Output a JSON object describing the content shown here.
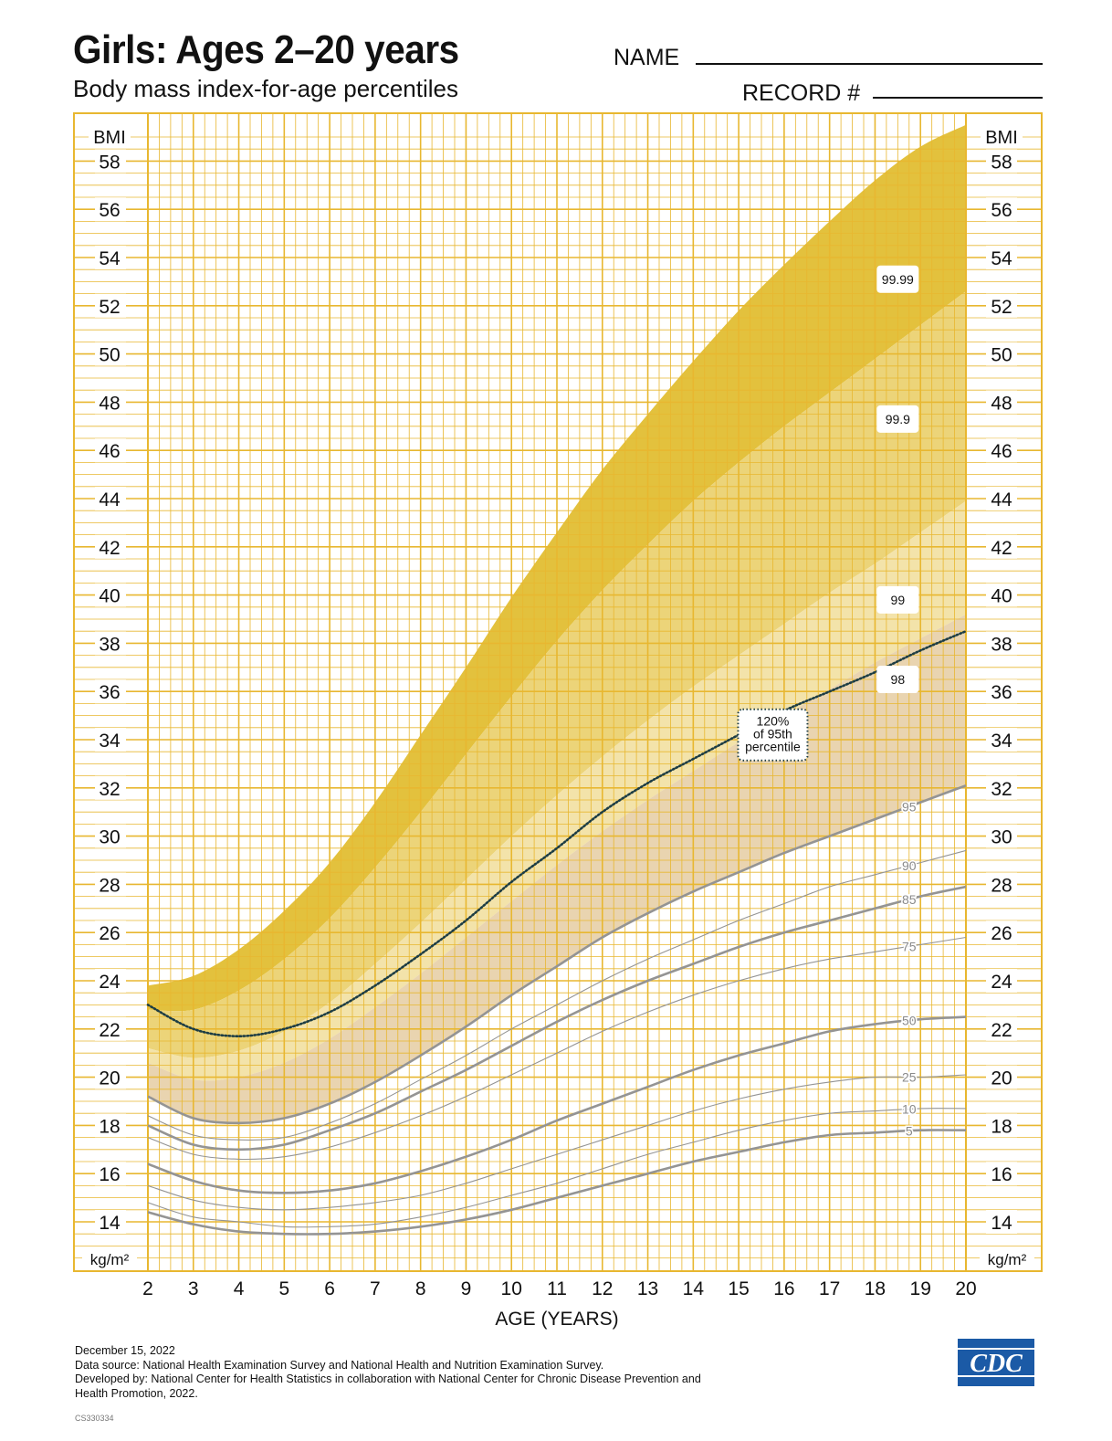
{
  "header": {
    "title": "Girls: Ages 2–20 years",
    "subtitle": "Body mass index-for-age percentiles",
    "name_label": "NAME",
    "record_label": "RECORD #"
  },
  "footer": {
    "date": "December 15, 2022",
    "source": "Data source: National Health Examination Survey and National Health and Nutrition Examination Survey.",
    "developed_1": "Developed by: National Center for Health Statistics in collaboration with National Center for Chronic Disease Prevention and",
    "developed_2": "Health Promotion, 2022.",
    "code": "CS330334"
  },
  "logo": {
    "text": "CDC",
    "color": "#1b5aa6"
  },
  "colors": {
    "grid": "#e8b730",
    "band_99_99": "#e3c13d",
    "band_99_9": "#ecd479",
    "band_99": "#f3e3aa",
    "band_98": "#e9d4b0",
    "curve": "#949494",
    "dotted": "#1d3d44"
  },
  "chart_data": {
    "type": "line",
    "xlabel": "AGE (YEARS)",
    "ylabel": "BMI",
    "yunit": "kg/m²",
    "xlim": [
      2,
      20
    ],
    "ylim": [
      12.5,
      60
    ],
    "x_ticks": [
      2,
      3,
      4,
      5,
      6,
      7,
      8,
      9,
      10,
      11,
      12,
      13,
      14,
      15,
      16,
      17,
      18,
      19,
      20
    ],
    "y_ticks": [
      14,
      16,
      18,
      20,
      22,
      24,
      26,
      28,
      30,
      32,
      34,
      36,
      38,
      40,
      42,
      44,
      46,
      48,
      50,
      52,
      54,
      56,
      58
    ],
    "x": [
      2,
      3,
      4,
      5,
      6,
      7,
      8,
      9,
      10,
      11,
      12,
      13,
      14,
      15,
      16,
      17,
      18,
      19,
      20
    ],
    "percentile_curves": [
      {
        "name": "5",
        "values": [
          14.4,
          13.9,
          13.6,
          13.5,
          13.5,
          13.6,
          13.8,
          14.1,
          14.5,
          15.0,
          15.5,
          16.0,
          16.5,
          16.9,
          17.3,
          17.6,
          17.7,
          17.8,
          17.8
        ],
        "weight": "bold"
      },
      {
        "name": "10",
        "values": [
          14.8,
          14.2,
          14.0,
          13.8,
          13.8,
          13.9,
          14.2,
          14.6,
          15.1,
          15.6,
          16.2,
          16.8,
          17.3,
          17.8,
          18.2,
          18.5,
          18.6,
          18.7,
          18.7
        ],
        "weight": "thin"
      },
      {
        "name": "25",
        "values": [
          15.5,
          14.9,
          14.6,
          14.5,
          14.6,
          14.8,
          15.1,
          15.6,
          16.2,
          16.8,
          17.4,
          18.0,
          18.6,
          19.1,
          19.5,
          19.8,
          20.0,
          20.0,
          20.1
        ],
        "weight": "thin"
      },
      {
        "name": "50",
        "values": [
          16.4,
          15.7,
          15.3,
          15.2,
          15.3,
          15.6,
          16.1,
          16.7,
          17.4,
          18.2,
          18.9,
          19.6,
          20.3,
          20.9,
          21.4,
          21.9,
          22.2,
          22.4,
          22.5
        ],
        "weight": "bold"
      },
      {
        "name": "75",
        "values": [
          17.5,
          16.8,
          16.6,
          16.7,
          17.1,
          17.7,
          18.4,
          19.2,
          20.1,
          21.0,
          21.9,
          22.7,
          23.4,
          24.0,
          24.5,
          24.9,
          25.2,
          25.5,
          25.8
        ],
        "weight": "thin"
      },
      {
        "name": "85",
        "values": [
          18.0,
          17.2,
          17.0,
          17.2,
          17.8,
          18.5,
          19.4,
          20.3,
          21.3,
          22.3,
          23.2,
          24.0,
          24.7,
          25.4,
          26.0,
          26.5,
          27.0,
          27.5,
          27.9
        ],
        "weight": "bold"
      },
      {
        "name": "90",
        "values": [
          18.4,
          17.6,
          17.4,
          17.5,
          18.1,
          18.9,
          19.9,
          20.9,
          22.0,
          23.0,
          24.0,
          24.9,
          25.7,
          26.5,
          27.2,
          27.9,
          28.4,
          28.9,
          29.4
        ],
        "weight": "thin"
      },
      {
        "name": "95",
        "values": [
          19.2,
          18.3,
          18.1,
          18.3,
          18.9,
          19.8,
          20.9,
          22.1,
          23.4,
          24.6,
          25.8,
          26.8,
          27.7,
          28.5,
          29.3,
          30.0,
          30.7,
          31.4,
          32.1
        ],
        "weight": "bold"
      }
    ],
    "extended_bands": [
      {
        "name": "98",
        "values": [
          20.6,
          19.9,
          20.0,
          20.6,
          21.6,
          22.9,
          24.3,
          25.8,
          27.3,
          28.8,
          30.2,
          31.5,
          32.7,
          33.9,
          35.0,
          36.1,
          37.2,
          38.2,
          39.2
        ]
      },
      {
        "name": "99",
        "values": [
          21.2,
          20.8,
          21.1,
          21.9,
          23.1,
          24.7,
          26.4,
          28.2,
          30.0,
          31.7,
          33.3,
          34.8,
          36.2,
          37.5,
          38.8,
          40.1,
          41.3,
          42.6,
          43.9
        ]
      },
      {
        "name": "99.9",
        "values": [
          22.8,
          22.8,
          23.6,
          24.9,
          26.6,
          28.7,
          31.0,
          33.4,
          35.8,
          38.1,
          40.2,
          42.1,
          43.9,
          45.5,
          47.0,
          48.4,
          49.8,
          51.2,
          52.6
        ]
      },
      {
        "name": "99.99",
        "values": [
          23.8,
          24.2,
          25.3,
          26.9,
          28.9,
          31.4,
          34.2,
          37.0,
          39.9,
          42.6,
          45.2,
          47.5,
          49.7,
          51.8,
          53.7,
          55.5,
          57.2,
          58.6,
          59.5
        ]
      }
    ],
    "dotted_curve": {
      "name": "120% of 95th percentile",
      "values": [
        23.0,
        22.0,
        21.7,
        22.0,
        22.7,
        23.8,
        25.1,
        26.5,
        28.1,
        29.5,
        31.0,
        32.2,
        33.2,
        34.2,
        35.2,
        36.0,
        36.8,
        37.7,
        38.5
      ]
    },
    "labels": {
      "bmi": "BMI",
      "unit": "kg/m²",
      "dotted_line_1": "120%",
      "dotted_line_2": "of 95th",
      "dotted_line_3": "percentile",
      "boxed": [
        "99.99",
        "99.9",
        "99",
        "98"
      ]
    }
  }
}
